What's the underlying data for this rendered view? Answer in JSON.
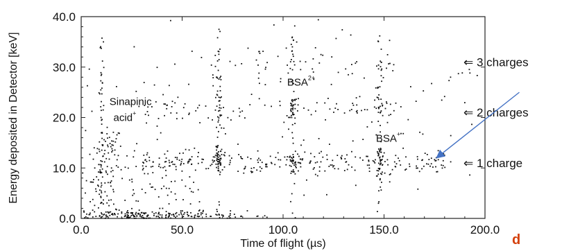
{
  "chart_data": {
    "type": "scatter",
    "xlabel": "Time of flight (µs)",
    "ylabel": "Energy deposited in Detector [keV]",
    "xlim": [
      0,
      200
    ],
    "ylim": [
      0,
      40
    ],
    "x_ticks": [
      "0.0",
      "50.0",
      "100.0",
      "150.0",
      "200.0"
    ],
    "y_ticks": [
      "0.0",
      "10.0",
      "20.0",
      "30.0",
      "40.0"
    ],
    "grid": false,
    "annotations": [
      {
        "text": "Sinapinic",
        "x": 14,
        "y": 22.5
      },
      {
        "text": "acid",
        "sup": "+",
        "x": 16,
        "y": 19.3
      },
      {
        "text": "BSA",
        "sup": "2+",
        "x": 102,
        "y": 26.3
      },
      {
        "text": "BSA",
        "sup": "+",
        "x": 146,
        "y": 15.2
      }
    ],
    "right_labels": [
      {
        "text": "⇐  3 charges",
        "y": 31
      },
      {
        "text": "⇐  2 charges",
        "y": 21
      },
      {
        "text": "⇐  1 charge",
        "y": 11
      }
    ],
    "arrow": {
      "from_x": 217,
      "from_y": 25,
      "to_x": 176,
      "to_y": 12,
      "color": "#4472c4"
    },
    "corner_text": "d",
    "clusters": [
      {
        "xc": 14,
        "sx": 3,
        "yc": 14,
        "sy": 2,
        "n": 45
      },
      {
        "xc": 9,
        "sx": 4,
        "yc": 4,
        "sy": 4,
        "n": 60
      },
      {
        "xc": 26,
        "sx": 16,
        "yc": 0.6,
        "sy": 0.6,
        "n": 170
      },
      {
        "xc": 55,
        "sx": 20,
        "yc": 0.4,
        "sy": 0.5,
        "n": 80
      },
      {
        "xc": 68,
        "sx": 1,
        "yc": 11.5,
        "sy": 1.4,
        "n": 45
      },
      {
        "xc": 68,
        "sx": 1,
        "yc": 21,
        "sy": 2,
        "n": 18
      },
      {
        "xc": 68,
        "sx": 1,
        "yc": 29,
        "sy": 3,
        "n": 8
      },
      {
        "xc": 105,
        "sx": 1,
        "yc": 21.5,
        "sy": 1.5,
        "n": 35
      },
      {
        "xc": 105,
        "sx": 1,
        "yc": 11,
        "sy": 1.2,
        "n": 20
      },
      {
        "xc": 105,
        "sx": 1.3,
        "yc": 31,
        "sy": 3,
        "n": 14
      },
      {
        "xc": 148,
        "sx": 1,
        "yc": 11.5,
        "sy": 1.5,
        "n": 40
      },
      {
        "xc": 148,
        "sx": 1,
        "yc": 21.5,
        "sy": 2,
        "n": 14
      },
      {
        "xc": 148,
        "sx": 1,
        "yc": 31,
        "sy": 3,
        "n": 8
      }
    ],
    "bands": [
      {
        "x0": 30,
        "x1": 180,
        "yc": 11,
        "sy": 1.2,
        "n": 260
      },
      {
        "x0": 25,
        "x1": 160,
        "yc": 21.5,
        "sy": 1.3,
        "n": 90
      },
      {
        "x0": 60,
        "x1": 155,
        "yc": 31,
        "sy": 2,
        "n": 50
      },
      {
        "x0": 12,
        "x1": 60,
        "yc": 7,
        "sy": 4,
        "n": 70
      },
      {
        "x0": 2,
        "x1": 198,
        "yc": 20,
        "sy": 12,
        "n": 140
      }
    ],
    "verticals": [
      {
        "x": 10,
        "y0": 2,
        "y1": 38,
        "n": 45
      },
      {
        "x": 68,
        "y0": 0,
        "y1": 38,
        "n": 30
      },
      {
        "x": 105,
        "y0": 0,
        "y1": 38,
        "n": 24
      },
      {
        "x": 148,
        "y0": 0,
        "y1": 38,
        "n": 20
      }
    ]
  }
}
